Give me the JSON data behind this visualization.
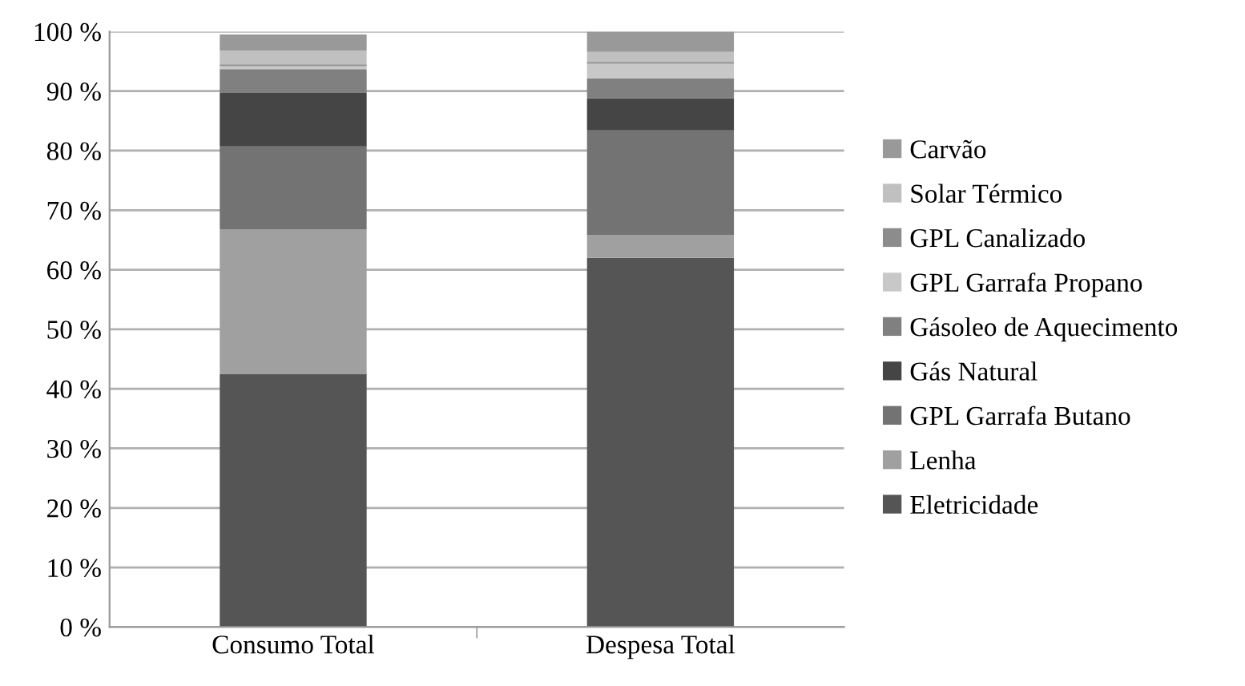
{
  "chart_data": {
    "type": "bar",
    "stacked": true,
    "categories": [
      "Consumo Total",
      "Despesa Total"
    ],
    "series": [
      {
        "name": "Eletricidade",
        "color": "#555555",
        "values": [
          42.5,
          62.0
        ]
      },
      {
        "name": "Lenha",
        "color": "#a0a0a0",
        "values": [
          24.3,
          3.8
        ]
      },
      {
        "name": "GPL Garrafa Butano",
        "color": "#737373",
        "values": [
          13.9,
          17.6
        ]
      },
      {
        "name": "Gás Natural",
        "color": "#454545",
        "values": [
          9.0,
          5.4
        ]
      },
      {
        "name": "Gásoleo de Aquecimento",
        "color": "#808080",
        "values": [
          4.0,
          3.3
        ]
      },
      {
        "name": "GPL Garrafa Propano",
        "color": "#c8c8c8",
        "values": [
          0.5,
          2.5
        ]
      },
      {
        "name": "GPL Canalizado",
        "color": "#8c8c8c",
        "values": [
          0.3,
          0.3
        ]
      },
      {
        "name": "Solar Térmico",
        "color": "#c0c0c0",
        "values": [
          2.3,
          1.7
        ]
      },
      {
        "name": "Carvão",
        "color": "#999999",
        "values": [
          2.7,
          3.4
        ]
      }
    ],
    "ylim": [
      0,
      100
    ],
    "yticks": [
      {
        "value": 0,
        "label": "0 %"
      },
      {
        "value": 10,
        "label": "10 %"
      },
      {
        "value": 20,
        "label": "20 %"
      },
      {
        "value": 30,
        "label": "30 %"
      },
      {
        "value": 40,
        "label": "40 %"
      },
      {
        "value": 50,
        "label": "50 %"
      },
      {
        "value": 60,
        "label": "60 %"
      },
      {
        "value": 70,
        "label": "70 %"
      },
      {
        "value": 80,
        "label": "80 %"
      },
      {
        "value": 90,
        "label": "90 %"
      },
      {
        "value": 100,
        "label": "100 %"
      }
    ],
    "grid": "y",
    "legend": "right"
  }
}
